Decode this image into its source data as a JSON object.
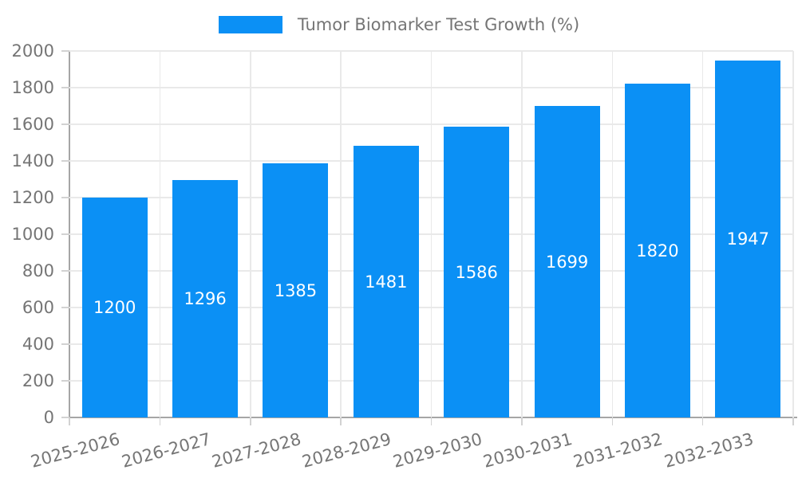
{
  "legend": {
    "label": "Tumor Biomarker Test Growth (%)"
  },
  "chart_data": {
    "type": "bar",
    "title": "Tumor Biomarker Test Growth (%)",
    "xlabel": "",
    "ylabel": "",
    "categories": [
      "2025-2026",
      "2026-2027",
      "2027-2028",
      "2028-2029",
      "2029-2030",
      "2030-2031",
      "2031-2032",
      "2032-2033"
    ],
    "series": [
      {
        "name": "Tumor Biomarker Test Growth (%)",
        "color": "#0b90f5",
        "values": [
          1200,
          1296,
          1385,
          1481,
          1586,
          1699,
          1820,
          1947
        ]
      }
    ],
    "ylim": [
      0,
      2000
    ],
    "yticks": [
      0,
      200,
      400,
      600,
      800,
      1000,
      1200,
      1400,
      1600,
      1800,
      2000
    ],
    "grid": "both",
    "legend_position": "top-center",
    "value_label_position": "inside-center",
    "value_label_color": "#ffffff",
    "axis_text_color": "#757575",
    "x_tick_label_rotation_deg": -15
  }
}
